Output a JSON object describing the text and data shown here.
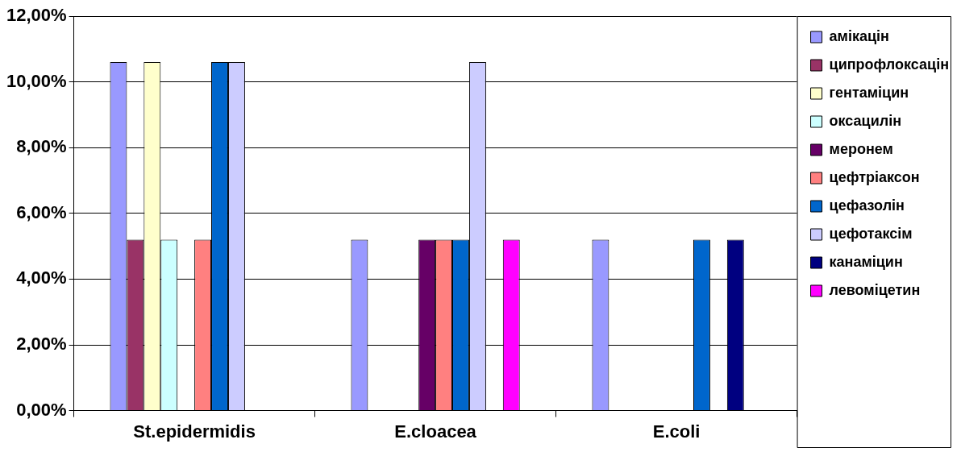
{
  "chart_data": {
    "type": "bar",
    "categories": [
      "St.epidermidis",
      "E.cloacea",
      "E.coli"
    ],
    "series": [
      {
        "name": "амікацін",
        "color": "#9999ff",
        "values": [
          10.6,
          5.2,
          5.2
        ]
      },
      {
        "name": "ципрофлоксацін",
        "color": "#993366",
        "values": [
          5.2,
          0,
          0
        ]
      },
      {
        "name": "гентаміцин",
        "color": "#ffffcc",
        "values": [
          10.6,
          0,
          0
        ]
      },
      {
        "name": "оксацилін",
        "color": "#ccffff",
        "values": [
          5.2,
          0,
          0
        ]
      },
      {
        "name": "меронем",
        "color": "#660066",
        "values": [
          0,
          5.2,
          0
        ]
      },
      {
        "name": "цефтріаксон",
        "color": "#ff8080",
        "values": [
          5.2,
          5.2,
          0
        ]
      },
      {
        "name": "цефазолін",
        "color": "#0066cc",
        "values": [
          10.6,
          5.2,
          5.2
        ]
      },
      {
        "name": "цефотаксім",
        "color": "#ccccff",
        "values": [
          10.6,
          10.6,
          0
        ]
      },
      {
        "name": "канаміцин",
        "color": "#000080",
        "values": [
          0,
          0,
          5.2
        ]
      },
      {
        "name": "левоміцетин",
        "color": "#ff00ff",
        "values": [
          0,
          5.2,
          0
        ]
      }
    ],
    "ylim": [
      0,
      12
    ],
    "yticks": [
      {
        "value": 0,
        "label": "0,00%"
      },
      {
        "value": 2,
        "label": "2,00%"
      },
      {
        "value": 4,
        "label": "4,00%"
      },
      {
        "value": 6,
        "label": "6,00%"
      },
      {
        "value": 8,
        "label": "8,00%"
      },
      {
        "value": 10,
        "label": "10,00%"
      },
      {
        "value": 12,
        "label": "12,00%"
      }
    ],
    "grid": "y",
    "legend": "right"
  }
}
